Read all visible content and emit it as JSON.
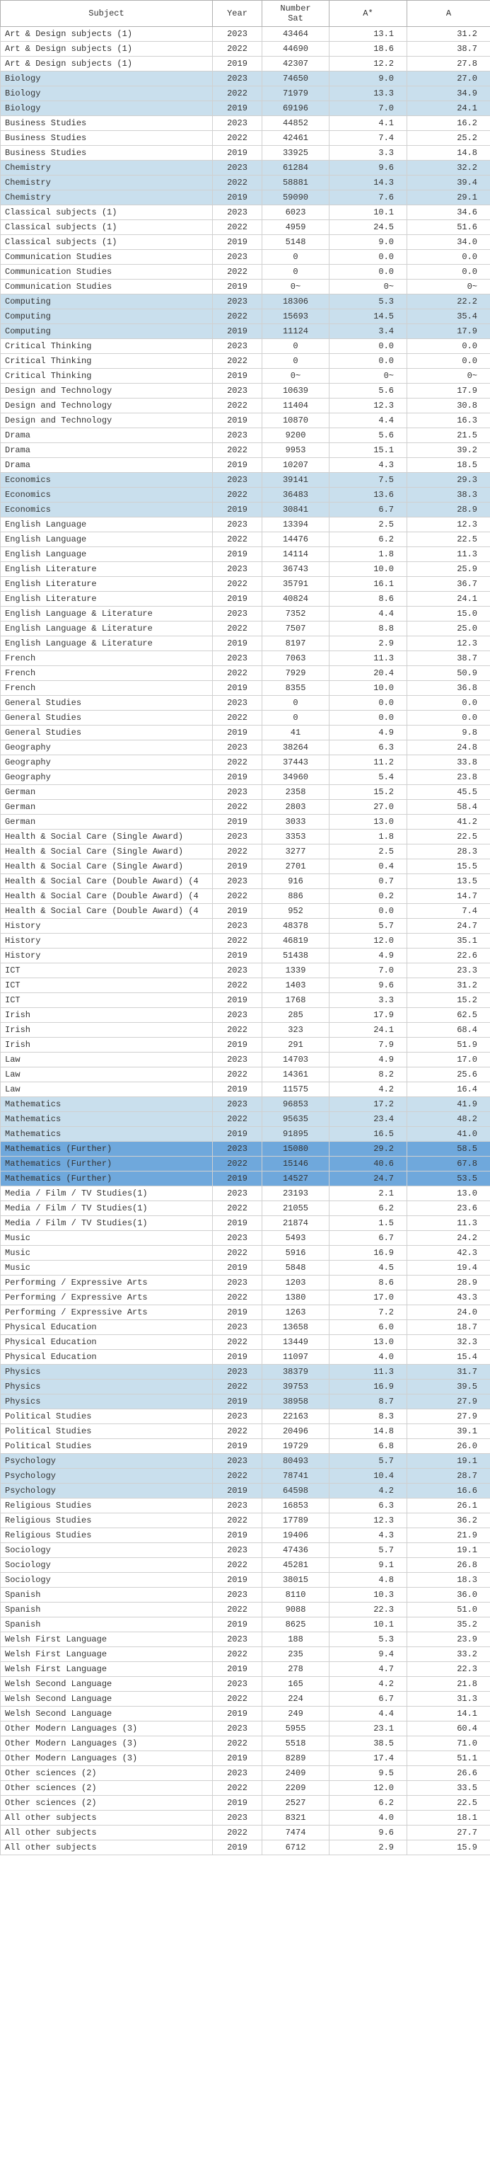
{
  "columns": [
    "Subject",
    "Year",
    "Number Sat",
    "A*",
    "A"
  ],
  "col_classes": [
    "subject",
    "year",
    "num",
    "pct",
    "pct"
  ],
  "highlight_colors": {
    "light": "#c9dfed",
    "dark": "#6fa8dc"
  },
  "highlight_groups": [
    "Biology",
    "Chemistry",
    "Computing",
    "Economics",
    "Mathematics",
    "Mathematics (Further)",
    "Physics",
    "Psychology"
  ],
  "dark_highlight_group": "Mathematics (Further)",
  "rows": [
    [
      "Art & Design subjects (1)",
      "2023",
      "43464",
      "13.1",
      "31.2"
    ],
    [
      "Art & Design subjects (1)",
      "2022",
      "44690",
      "18.6",
      "38.7"
    ],
    [
      "Art & Design subjects (1)",
      "2019",
      "42307",
      "12.2",
      "27.8"
    ],
    [
      "Biology",
      "2023",
      "74650",
      "9.0",
      "27.0"
    ],
    [
      "Biology",
      "2022",
      "71979",
      "13.3",
      "34.9"
    ],
    [
      "Biology",
      "2019",
      "69196",
      "7.0",
      "24.1"
    ],
    [
      "Business Studies",
      "2023",
      "44852",
      "4.1",
      "16.2"
    ],
    [
      "Business Studies",
      "2022",
      "42461",
      "7.4",
      "25.2"
    ],
    [
      "Business Studies",
      "2019",
      "33925",
      "3.3",
      "14.8"
    ],
    [
      "Chemistry",
      "2023",
      "61284",
      "9.6",
      "32.2"
    ],
    [
      "Chemistry",
      "2022",
      "58881",
      "14.3",
      "39.4"
    ],
    [
      "Chemistry",
      "2019",
      "59090",
      "7.6",
      "29.1"
    ],
    [
      "Classical subjects (1)",
      "2023",
      "6023",
      "10.1",
      "34.6"
    ],
    [
      "Classical subjects (1)",
      "2022",
      "4959",
      "24.5",
      "51.6"
    ],
    [
      "Classical subjects (1)",
      "2019",
      "5148",
      "9.0",
      "34.0"
    ],
    [
      "Communication Studies",
      "2023",
      "0",
      "0.0",
      "0.0"
    ],
    [
      "Communication Studies",
      "2022",
      "0",
      "0.0",
      "0.0"
    ],
    [
      "Communication Studies",
      "2019",
      "0~",
      "0~",
      "0~"
    ],
    [
      "Computing",
      "2023",
      "18306",
      "5.3",
      "22.2"
    ],
    [
      "Computing",
      "2022",
      "15693",
      "14.5",
      "35.4"
    ],
    [
      "Computing",
      "2019",
      "11124",
      "3.4",
      "17.9"
    ],
    [
      "Critical Thinking",
      "2023",
      "0",
      "0.0",
      "0.0"
    ],
    [
      "Critical Thinking",
      "2022",
      "0",
      "0.0",
      "0.0"
    ],
    [
      "Critical Thinking",
      "2019",
      "0~",
      "0~",
      "0~"
    ],
    [
      "Design and Technology",
      "2023",
      "10639",
      "5.6",
      "17.9"
    ],
    [
      "Design and Technology",
      "2022",
      "11404",
      "12.3",
      "30.8"
    ],
    [
      "Design and Technology",
      "2019",
      "10870",
      "4.4",
      "16.3"
    ],
    [
      "Drama",
      "2023",
      "9200",
      "5.6",
      "21.5"
    ],
    [
      "Drama",
      "2022",
      "9953",
      "15.1",
      "39.2"
    ],
    [
      "Drama",
      "2019",
      "10207",
      "4.3",
      "18.5"
    ],
    [
      "Economics",
      "2023",
      "39141",
      "7.5",
      "29.3"
    ],
    [
      "Economics",
      "2022",
      "36483",
      "13.6",
      "38.3"
    ],
    [
      "Economics",
      "2019",
      "30841",
      "6.7",
      "28.9"
    ],
    [
      "English Language",
      "2023",
      "13394",
      "2.5",
      "12.3"
    ],
    [
      "English Language",
      "2022",
      "14476",
      "6.2",
      "22.5"
    ],
    [
      "English Language",
      "2019",
      "14114",
      "1.8",
      "11.3"
    ],
    [
      "English Literature",
      "2023",
      "36743",
      "10.0",
      "25.9"
    ],
    [
      "English Literature",
      "2022",
      "35791",
      "16.1",
      "36.7"
    ],
    [
      "English Literature",
      "2019",
      "40824",
      "8.6",
      "24.1"
    ],
    [
      "English Language & Literature",
      "2023",
      "7352",
      "4.4",
      "15.0"
    ],
    [
      "English Language & Literature",
      "2022",
      "7507",
      "8.8",
      "25.0"
    ],
    [
      "English Language & Literature",
      "2019",
      "8197",
      "2.9",
      "12.3"
    ],
    [
      "French",
      "2023",
      "7063",
      "11.3",
      "38.7"
    ],
    [
      "French",
      "2022",
      "7929",
      "20.4",
      "50.9"
    ],
    [
      "French",
      "2019",
      "8355",
      "10.0",
      "36.8"
    ],
    [
      "General Studies",
      "2023",
      "0",
      "0.0",
      "0.0"
    ],
    [
      "General Studies",
      "2022",
      "0",
      "0.0",
      "0.0"
    ],
    [
      "General Studies",
      "2019",
      "41",
      "4.9",
      "9.8"
    ],
    [
      "Geography",
      "2023",
      "38264",
      "6.3",
      "24.8"
    ],
    [
      "Geography",
      "2022",
      "37443",
      "11.2",
      "33.8"
    ],
    [
      "Geography",
      "2019",
      "34960",
      "5.4",
      "23.8"
    ],
    [
      "German",
      "2023",
      "2358",
      "15.2",
      "45.5"
    ],
    [
      "German",
      "2022",
      "2803",
      "27.0",
      "58.4"
    ],
    [
      "German",
      "2019",
      "3033",
      "13.0",
      "41.2"
    ],
    [
      "Health & Social Care (Single Award)",
      "2023",
      "3353",
      "1.8",
      "22.5"
    ],
    [
      "Health & Social Care (Single Award)",
      "2022",
      "3277",
      "2.5",
      "28.3"
    ],
    [
      "Health & Social Care (Single Award)",
      "2019",
      "2701",
      "0.4",
      "15.5"
    ],
    [
      "Health & Social Care (Double Award) (4",
      "2023",
      "916",
      "0.7",
      "13.5"
    ],
    [
      "Health & Social Care (Double Award) (4",
      "2022",
      "886",
      "0.2",
      "14.7"
    ],
    [
      "Health & Social Care (Double Award) (4",
      "2019",
      "952",
      "0.0",
      "7.4"
    ],
    [
      "History",
      "2023",
      "48378",
      "5.7",
      "24.7"
    ],
    [
      "History",
      "2022",
      "46819",
      "12.0",
      "35.1"
    ],
    [
      "History",
      "2019",
      "51438",
      "4.9",
      "22.6"
    ],
    [
      "ICT",
      "2023",
      "1339",
      "7.0",
      "23.3"
    ],
    [
      "ICT",
      "2022",
      "1403",
      "9.6",
      "31.2"
    ],
    [
      "ICT",
      "2019",
      "1768",
      "3.3",
      "15.2"
    ],
    [
      "Irish",
      "2023",
      "285",
      "17.9",
      "62.5"
    ],
    [
      "Irish",
      "2022",
      "323",
      "24.1",
      "68.4"
    ],
    [
      "Irish",
      "2019",
      "291",
      "7.9",
      "51.9"
    ],
    [
      "Law",
      "2023",
      "14703",
      "4.9",
      "17.0"
    ],
    [
      "Law",
      "2022",
      "14361",
      "8.2",
      "25.6"
    ],
    [
      "Law",
      "2019",
      "11575",
      "4.2",
      "16.4"
    ],
    [
      "Mathematics",
      "2023",
      "96853",
      "17.2",
      "41.9"
    ],
    [
      "Mathematics",
      "2022",
      "95635",
      "23.4",
      "48.2"
    ],
    [
      "Mathematics",
      "2019",
      "91895",
      "16.5",
      "41.0"
    ],
    [
      "Mathematics (Further)",
      "2023",
      "15080",
      "29.2",
      "58.5"
    ],
    [
      "Mathematics (Further)",
      "2022",
      "15146",
      "40.6",
      "67.8"
    ],
    [
      "Mathematics (Further)",
      "2019",
      "14527",
      "24.7",
      "53.5"
    ],
    [
      "Media / Film / TV Studies(1)",
      "2023",
      "23193",
      "2.1",
      "13.0"
    ],
    [
      "Media / Film / TV Studies(1)",
      "2022",
      "21055",
      "6.2",
      "23.6"
    ],
    [
      "Media / Film / TV Studies(1)",
      "2019",
      "21874",
      "1.5",
      "11.3"
    ],
    [
      "Music",
      "2023",
      "5493",
      "6.7",
      "24.2"
    ],
    [
      "Music",
      "2022",
      "5916",
      "16.9",
      "42.3"
    ],
    [
      "Music",
      "2019",
      "5848",
      "4.5",
      "19.4"
    ],
    [
      "Performing / Expressive Arts",
      "2023",
      "1203",
      "8.6",
      "28.9"
    ],
    [
      "Performing / Expressive Arts",
      "2022",
      "1380",
      "17.0",
      "43.3"
    ],
    [
      "Performing / Expressive Arts",
      "2019",
      "1263",
      "7.2",
      "24.0"
    ],
    [
      "Physical Education",
      "2023",
      "13658",
      "6.0",
      "18.7"
    ],
    [
      "Physical Education",
      "2022",
      "13449",
      "13.0",
      "32.3"
    ],
    [
      "Physical Education",
      "2019",
      "11097",
      "4.0",
      "15.4"
    ],
    [
      "Physics",
      "2023",
      "38379",
      "11.3",
      "31.7"
    ],
    [
      "Physics",
      "2022",
      "39753",
      "16.9",
      "39.5"
    ],
    [
      "Physics",
      "2019",
      "38958",
      "8.7",
      "27.9"
    ],
    [
      "Political Studies",
      "2023",
      "22163",
      "8.3",
      "27.9"
    ],
    [
      "Political Studies",
      "2022",
      "20496",
      "14.8",
      "39.1"
    ],
    [
      "Political Studies",
      "2019",
      "19729",
      "6.8",
      "26.0"
    ],
    [
      "Psychology",
      "2023",
      "80493",
      "5.7",
      "19.1"
    ],
    [
      "Psychology",
      "2022",
      "78741",
      "10.4",
      "28.7"
    ],
    [
      "Psychology",
      "2019",
      "64598",
      "4.2",
      "16.6"
    ],
    [
      "Religious Studies",
      "2023",
      "16853",
      "6.3",
      "26.1"
    ],
    [
      "Religious Studies",
      "2022",
      "17789",
      "12.3",
      "36.2"
    ],
    [
      "Religious Studies",
      "2019",
      "19406",
      "4.3",
      "21.9"
    ],
    [
      "Sociology",
      "2023",
      "47436",
      "5.7",
      "19.1"
    ],
    [
      "Sociology",
      "2022",
      "45281",
      "9.1",
      "26.8"
    ],
    [
      "Sociology",
      "2019",
      "38015",
      "4.8",
      "18.3"
    ],
    [
      "Spanish",
      "2023",
      "8110",
      "10.3",
      "36.0"
    ],
    [
      "Spanish",
      "2022",
      "9088",
      "22.3",
      "51.0"
    ],
    [
      "Spanish",
      "2019",
      "8625",
      "10.1",
      "35.2"
    ],
    [
      "Welsh First Language",
      "2023",
      "188",
      "5.3",
      "23.9"
    ],
    [
      "Welsh First Language",
      "2022",
      "235",
      "9.4",
      "33.2"
    ],
    [
      "Welsh First Language",
      "2019",
      "278",
      "4.7",
      "22.3"
    ],
    [
      "Welsh Second Language",
      "2023",
      "165",
      "4.2",
      "21.8"
    ],
    [
      "Welsh Second Language",
      "2022",
      "224",
      "6.7",
      "31.3"
    ],
    [
      "Welsh Second Language",
      "2019",
      "249",
      "4.4",
      "14.1"
    ],
    [
      "Other Modern Languages (3)",
      "2023",
      "5955",
      "23.1",
      "60.4"
    ],
    [
      "Other Modern Languages (3)",
      "2022",
      "5518",
      "38.5",
      "71.0"
    ],
    [
      "Other Modern Languages (3)",
      "2019",
      "8289",
      "17.4",
      "51.1"
    ],
    [
      "Other sciences (2)",
      "2023",
      "2409",
      "9.5",
      "26.6"
    ],
    [
      "Other sciences (2)",
      "2022",
      "2209",
      "12.0",
      "33.5"
    ],
    [
      "Other sciences (2)",
      "2019",
      "2527",
      "6.2",
      "22.5"
    ],
    [
      "All other subjects",
      "2023",
      "8321",
      "4.0",
      "18.1"
    ],
    [
      "All other subjects",
      "2022",
      "7474",
      "9.6",
      "27.7"
    ],
    [
      "All other subjects",
      "2019",
      "6712",
      "2.9",
      "15.9"
    ]
  ]
}
